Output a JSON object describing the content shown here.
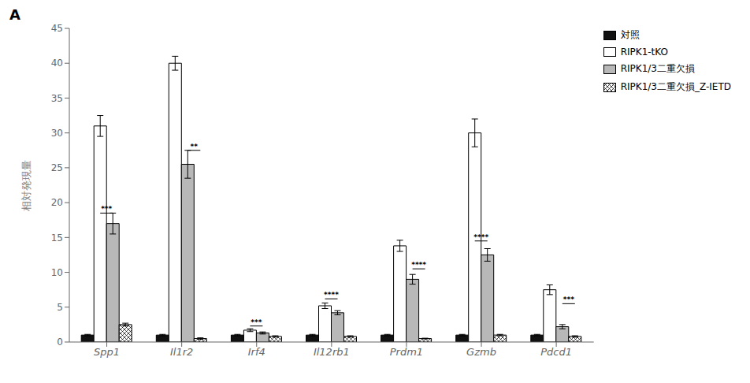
{
  "chart_data": {
    "type": "bar",
    "title": "A",
    "categories": [
      "Spp1",
      "Il1r2",
      "Irf4",
      "Il12rb1",
      "Prdm1",
      "Gzmb",
      "Pdcd1"
    ],
    "series": [
      {
        "name": "対照",
        "color": "#111111",
        "values": [
          1,
          1,
          1,
          1,
          1,
          1,
          1
        ],
        "errors": [
          0.1,
          0.1,
          0.1,
          0.1,
          0.1,
          0.1,
          0.1
        ]
      },
      {
        "name": "RIPK1-tKO",
        "color": "#ffffff",
        "values": [
          31,
          40,
          1.7,
          5.2,
          13.8,
          30,
          7.5
        ],
        "errors": [
          1.5,
          1.0,
          0.2,
          0.4,
          0.8,
          2.0,
          0.7
        ]
      },
      {
        "name": "RIPK1/3二重欠損",
        "color": "#b8b8b8",
        "values": [
          17,
          25.5,
          1.3,
          4.2,
          9,
          12.5,
          2.2
        ],
        "errors": [
          1.5,
          2.0,
          0.15,
          0.3,
          0.7,
          0.9,
          0.3
        ]
      },
      {
        "name": "RIPK1/3二重欠損_Z-IETD",
        "color": "#ffffff",
        "hatch": "xxx",
        "values": [
          2.5,
          0.5,
          0.8,
          0.8,
          0.5,
          1.0,
          0.8
        ],
        "errors": [
          0.2,
          0.1,
          0.1,
          0.1,
          0.05,
          0.1,
          0.1
        ]
      }
    ],
    "ylabel": "相対発現量",
    "ylim": [
      0,
      45
    ],
    "yticks": [
      0,
      5,
      10,
      15,
      20,
      25,
      30,
      35,
      40,
      45
    ],
    "grid": false,
    "legend": "upper right",
    "annotations": [
      {
        "category": "Spp1",
        "from": "RIPK1-tKO",
        "to": "RIPK1/3二重欠損",
        "y": 18.5,
        "text": "***"
      },
      {
        "category": "Il1r2",
        "from": "RIPK1/3二重欠損",
        "to": "RIPK1/3二重欠損_Z-IETD",
        "y": 27.5,
        "text": "**"
      },
      {
        "category": "Irf4",
        "from": "RIPK1-tKO",
        "to": "RIPK1/3二重欠損",
        "y": 2.3,
        "text": "***"
      },
      {
        "category": "Il12rb1",
        "from": "RIPK1-tKO",
        "to": "RIPK1/3二重欠損",
        "y": 6.2,
        "text": "****"
      },
      {
        "category": "Prdm1",
        "from": "RIPK1/3二重欠損",
        "to": "RIPK1/3二重欠損_Z-IETD",
        "y": 10.5,
        "text": "****"
      },
      {
        "category": "Gzmb",
        "from": "RIPK1-tKO",
        "to": "RIPK1/3二重欠損",
        "y": 14.5,
        "text": "****"
      },
      {
        "category": "Pdcd1",
        "from": "RIPK1/3二重欠損",
        "to": "RIPK1/3二重欠損_Z-IETD",
        "y": 5.5,
        "text": "***"
      }
    ]
  }
}
